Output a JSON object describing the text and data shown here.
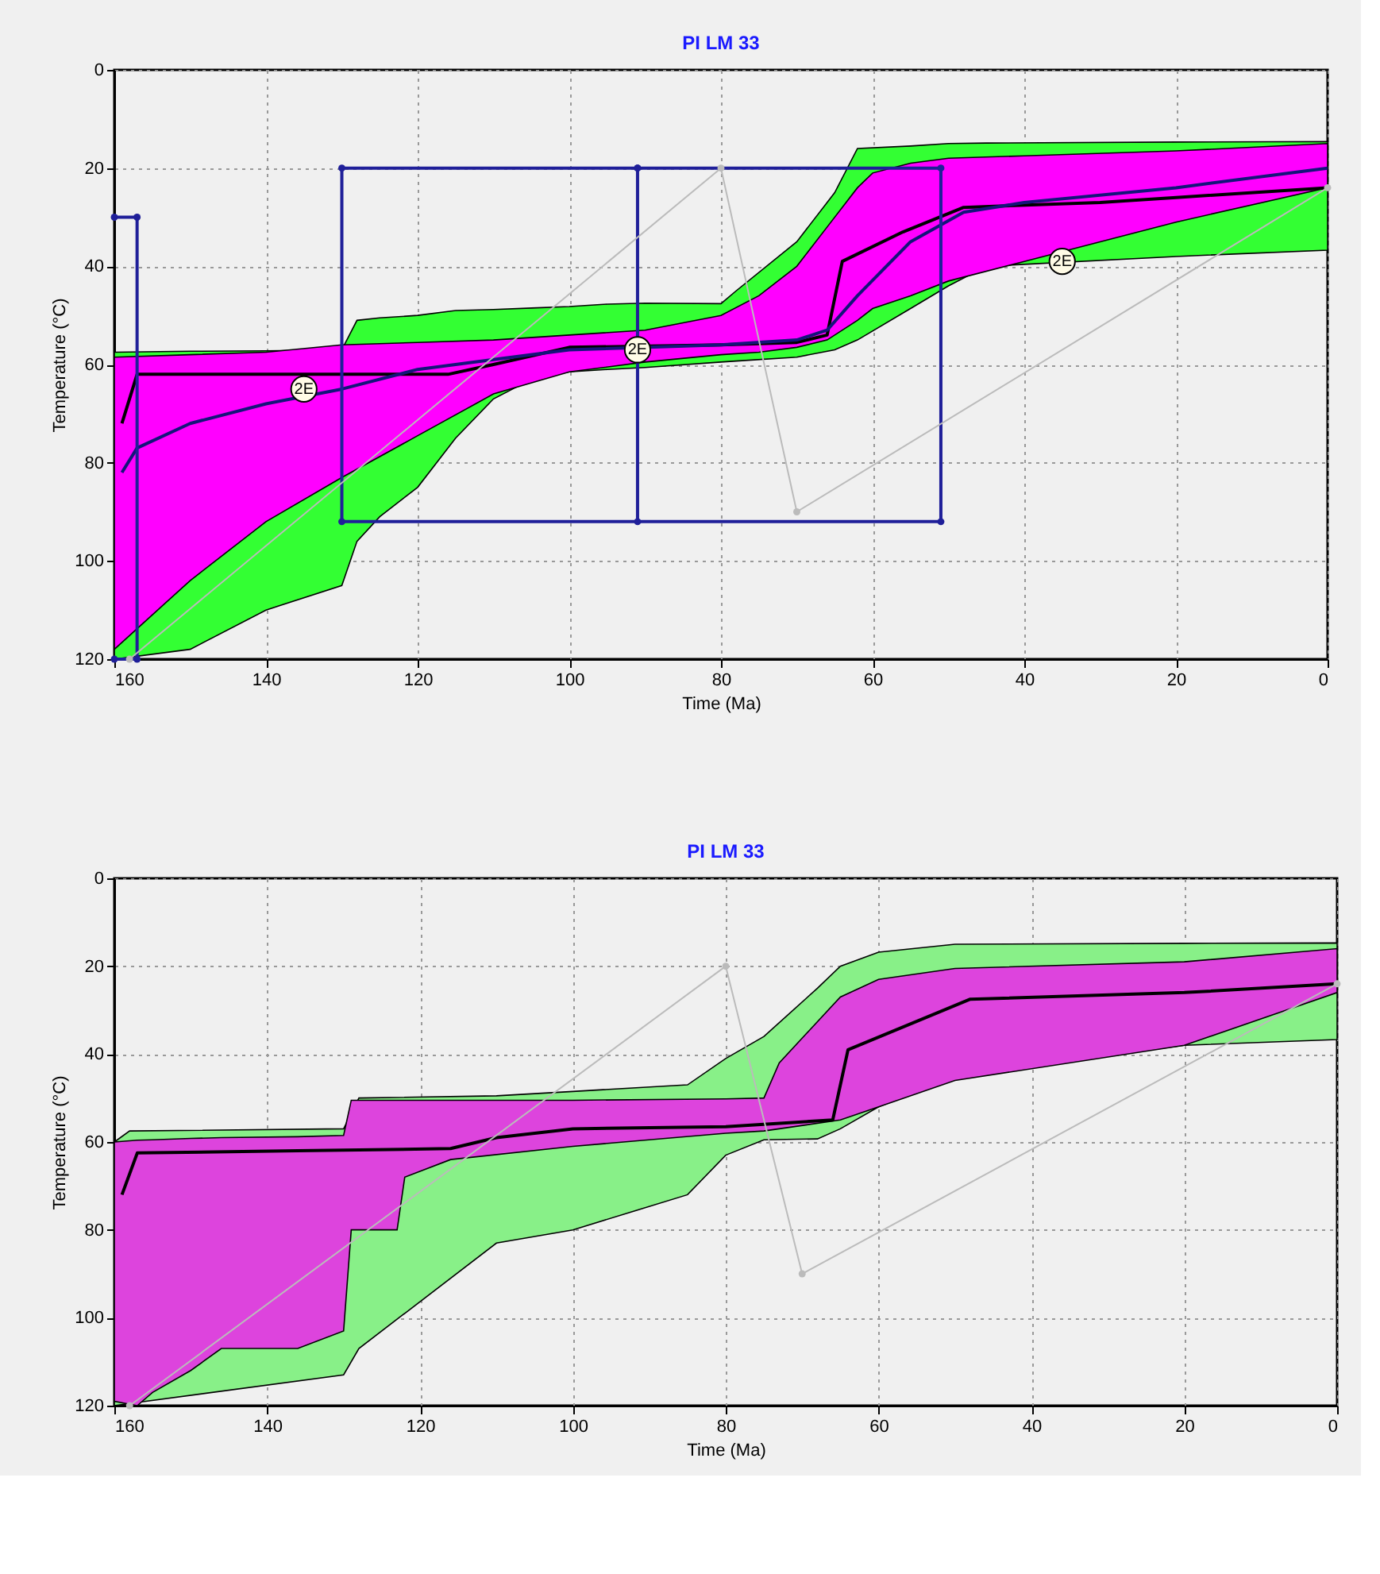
{
  "chart_data": [
    {
      "type": "line",
      "title": "PI LM 33",
      "xlabel": "Time (Ma)",
      "ylabel": "Temperature (°C)",
      "xlim": [
        160,
        0
      ],
      "ylim": [
        120,
        0
      ],
      "xticks": [
        160,
        140,
        120,
        100,
        80,
        60,
        40,
        20,
        0
      ],
      "yticks": [
        0,
        20,
        40,
        60,
        80,
        100,
        120
      ],
      "grid": true,
      "series": [
        {
          "color": "#33ff33",
          "x": [
            160,
            150,
            140,
            130,
            128,
            125,
            120,
            115,
            110,
            105,
            100,
            95,
            90,
            80,
            78,
            70,
            65,
            62,
            55,
            50,
            45,
            20,
            0
          ],
          "values": [
            null,
            null,
            null,
            null,
            null,
            null,
            null,
            null,
            null,
            null,
            null,
            null,
            null,
            null,
            null,
            null,
            null,
            null,
            null,
            null,
            null,
            null,
            null
          ],
          "lower": [
            57.5,
            57.3,
            57.2,
            57,
            51,
            50.5,
            50,
            49,
            48.8,
            48.5,
            48.2,
            47.7,
            47.5,
            47.6,
            45,
            35,
            25,
            16,
            15.5,
            15,
            14.9,
            14.7,
            14.6
          ],
          "upper": [
            120,
            118,
            110,
            105,
            96,
            91,
            85,
            75,
            67,
            63,
            61.5,
            61,
            60.6,
            59.5,
            59.3,
            58.5,
            57,
            55,
            48.6,
            44,
            40,
            38,
            36.7
          ]
        },
        {
          "color": "#ff00ff",
          "x": [
            160,
            150,
            140,
            130,
            120,
            110,
            100,
            90,
            80,
            75,
            70,
            66,
            62,
            60,
            55,
            50,
            40,
            20,
            0
          ],
          "values": [
            null,
            null,
            null,
            null,
            null,
            null,
            null,
            null,
            null,
            null,
            null,
            null,
            null,
            null,
            null,
            null,
            null,
            null,
            null
          ],
          "lower": [
            58.5,
            58,
            57.5,
            56,
            55.5,
            55,
            54,
            53,
            50,
            46,
            40,
            32,
            24,
            21,
            19,
            18,
            17.5,
            16.5,
            15
          ],
          "upper": [
            118,
            104,
            92,
            83,
            74.5,
            66,
            61.5,
            59.5,
            58,
            57.5,
            56.5,
            55,
            51,
            48.6,
            46,
            43,
            39,
            31,
            24
          ]
        },
        {
          "color": "#000000",
          "x": [
            159,
            157,
            140,
            116,
            110,
            100,
            80,
            70,
            66,
            64,
            56,
            48,
            30,
            20,
            0
          ],
          "values": [
            72,
            62,
            62,
            62,
            60,
            56.5,
            56,
            55.5,
            54,
            39,
            33,
            28,
            27,
            26,
            24
          ]
        },
        {
          "color": "#14147a",
          "x": [
            159,
            157,
            150,
            140,
            130,
            120,
            110,
            100,
            80,
            70,
            66,
            62,
            55,
            48,
            40,
            20,
            0
          ],
          "values": [
            82,
            77,
            72,
            68,
            65,
            61,
            59,
            57,
            56,
            55,
            53,
            46,
            35,
            29,
            27,
            24,
            20
          ]
        },
        {
          "color": "#1f1f99",
          "marker": "circle",
          "x": [
            160,
            157,
            157,
            160
          ],
          "values": [
            30,
            30,
            120,
            120
          ]
        },
        {
          "color": "#1f1f99",
          "marker": "circle",
          "x": [
            91,
            130,
            130,
            51,
            51,
            91,
            91
          ],
          "values": [
            20,
            20,
            92,
            92,
            20,
            20,
            92
          ]
        },
        {
          "color": "#bbbbbb",
          "marker": "circle",
          "x": [
            158,
            80,
            70,
            0
          ],
          "values": [
            120,
            20,
            90,
            24
          ]
        }
      ],
      "annotations": [
        {
          "text": "2E",
          "x": 135,
          "y": 65
        },
        {
          "text": "2E",
          "x": 91,
          "y": 57
        },
        {
          "text": "2E",
          "x": 35,
          "y": 39
        }
      ]
    },
    {
      "type": "line",
      "title": "PI LM 33",
      "xlabel": "Time (Ma)",
      "ylabel": "Temperature (°C)",
      "xlim": [
        160,
        0
      ],
      "ylim": [
        120,
        0
      ],
      "xticks": [
        160,
        140,
        120,
        100,
        80,
        60,
        40,
        20,
        0
      ],
      "yticks": [
        0,
        20,
        40,
        60,
        80,
        100,
        120
      ],
      "grid": true,
      "series": [
        {
          "color": "#88f088",
          "x": [
            160,
            158,
            130,
            128,
            110,
            100,
            85,
            80,
            75,
            68,
            65,
            60,
            50,
            20,
            0
          ],
          "values": [
            null,
            null,
            null,
            null,
            null,
            null,
            null,
            null,
            null,
            null,
            null,
            null,
            null,
            null,
            null
          ],
          "lower": [
            60,
            57.5,
            57,
            50,
            49.5,
            48.5,
            47,
            41,
            36,
            25,
            20,
            16.8,
            15,
            14.8,
            14.7
          ],
          "upper": [
            120,
            119.5,
            113,
            107,
            83,
            80,
            72,
            63,
            59.5,
            59.3,
            57,
            52,
            45,
            38,
            36.7
          ]
        },
        {
          "color": "#dd44dd",
          "x": [
            160,
            157,
            155,
            150,
            146,
            136,
            130,
            129,
            123,
            122,
            116,
            100,
            80,
            75,
            73,
            65,
            60,
            50,
            20,
            0
          ],
          "values": [
            null,
            null,
            null,
            null,
            null,
            null,
            null,
            null,
            null,
            null,
            null,
            null,
            null,
            null,
            null,
            null,
            null,
            null,
            null,
            null
          ],
          "lower": [
            60,
            59.6,
            59.5,
            59.2,
            59,
            58.8,
            58.5,
            50.5,
            50.5,
            50.5,
            50.5,
            50.5,
            50.2,
            50,
            42,
            27,
            23,
            20.5,
            19,
            16
          ],
          "upper": [
            119,
            120,
            117,
            112,
            107,
            107,
            103,
            80,
            80,
            68,
            64,
            61,
            58,
            57.5,
            57,
            55,
            52,
            46,
            38,
            26
          ]
        },
        {
          "color": "#000000",
          "x": [
            159,
            157,
            136,
            116,
            110,
            100,
            80,
            66,
            64,
            48,
            20,
            0
          ],
          "values": [
            72,
            62.5,
            62,
            61.5,
            59,
            57,
            56.5,
            55,
            39,
            27.5,
            26,
            24
          ]
        },
        {
          "color": "#bbbbbb",
          "marker": "circle",
          "x": [
            158,
            80,
            70,
            0
          ],
          "values": [
            120,
            20,
            90,
            24
          ]
        }
      ]
    }
  ]
}
